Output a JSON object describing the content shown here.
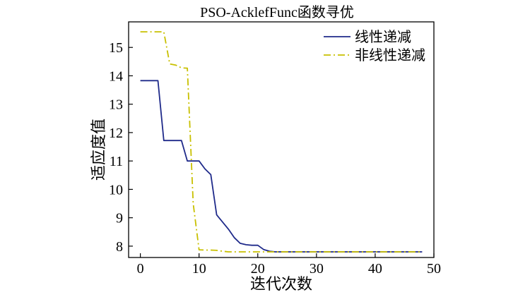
{
  "chart_data": {
    "type": "line",
    "title": "PSO-AcklefFunc函数寻优",
    "xlabel": "迭代次数",
    "ylabel": "适应度值",
    "xlim": [
      -2,
      50
    ],
    "ylim": [
      7.6,
      15.9
    ],
    "xticks": [
      0,
      10,
      20,
      30,
      40,
      50
    ],
    "yticks": [
      8,
      9,
      10,
      11,
      12,
      13,
      14,
      15
    ],
    "grid": false,
    "legend_position": "top-right",
    "series": [
      {
        "name": "线性递减",
        "color": "#1f2a8a",
        "dash": "solid",
        "x": [
          0,
          3,
          4,
          7,
          8,
          9,
          10,
          11,
          12,
          13,
          14,
          15,
          16,
          17,
          18,
          19,
          20,
          21,
          22,
          23,
          24,
          30,
          40,
          48
        ],
        "y": [
          13.83,
          13.83,
          11.72,
          11.72,
          11.0,
          11.0,
          11.0,
          10.72,
          10.52,
          9.1,
          8.85,
          8.6,
          8.3,
          8.1,
          8.05,
          8.03,
          8.03,
          7.88,
          7.82,
          7.8,
          7.8,
          7.8,
          7.8,
          7.8
        ]
      },
      {
        "name": "非线性递减",
        "color": "#c8c000",
        "dash": "dashdot",
        "x": [
          0,
          4,
          5,
          6,
          7,
          8,
          9,
          10,
          11,
          12,
          13,
          14,
          15,
          20,
          30,
          40,
          48
        ],
        "y": [
          15.55,
          15.55,
          14.42,
          14.38,
          14.28,
          14.27,
          9.5,
          7.87,
          7.86,
          7.86,
          7.85,
          7.82,
          7.8,
          7.8,
          7.8,
          7.8,
          7.8
        ]
      }
    ]
  }
}
